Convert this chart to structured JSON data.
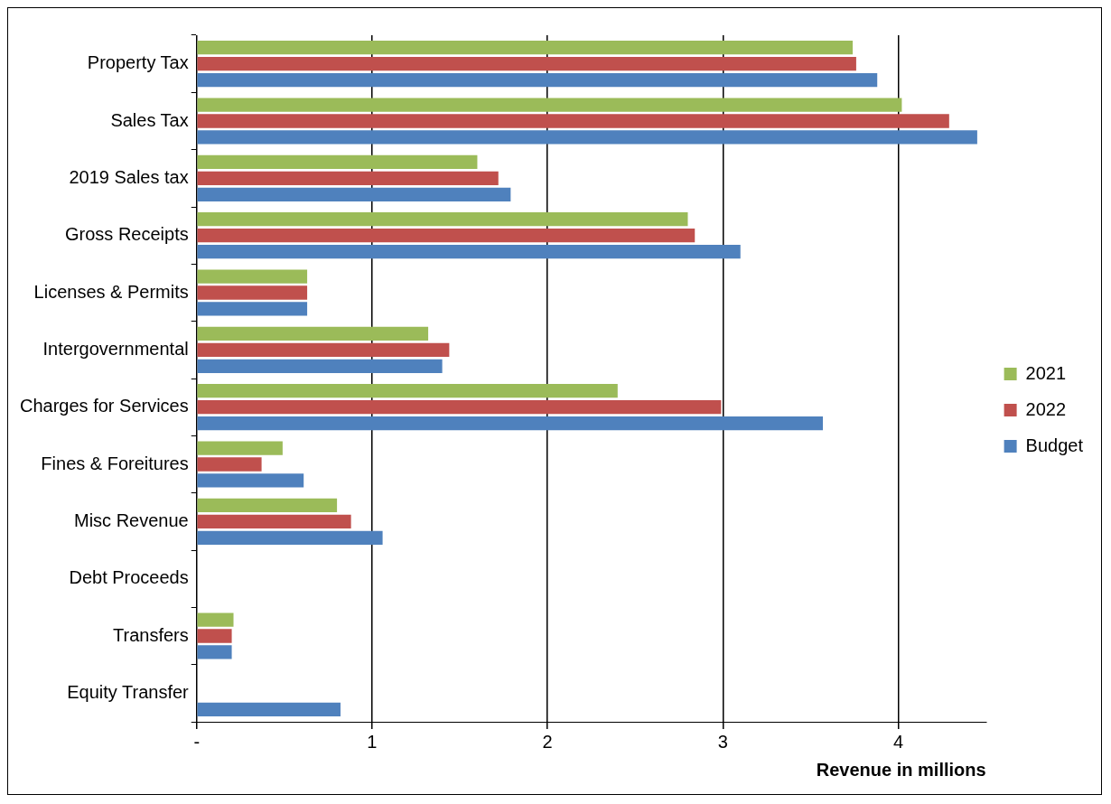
{
  "chart_data": {
    "type": "bar",
    "orientation": "horizontal",
    "xlabel": "Revenue in millions",
    "categories": [
      "Property Tax",
      "Sales Tax",
      "2019 Sales tax",
      "Gross Receipts",
      "Licenses & Permits",
      "Intergovernmental",
      "Charges for Services",
      "Fines & Foreitures",
      "Misc Revenue",
      "Debt Proceeds",
      "Transfers",
      "Equity Transfer"
    ],
    "series": [
      {
        "name": "2021",
        "color": "#9bbb59",
        "values": [
          3.74,
          4.02,
          1.6,
          2.8,
          0.63,
          1.32,
          2.4,
          0.49,
          0.8,
          0,
          0.21,
          0
        ]
      },
      {
        "name": "2022",
        "color": "#c0504d",
        "values": [
          3.76,
          4.29,
          1.72,
          2.84,
          0.63,
          1.44,
          2.99,
          0.37,
          0.88,
          0,
          0.2,
          0
        ]
      },
      {
        "name": "Budget",
        "color": "#4f81bd",
        "values": [
          3.88,
          4.45,
          1.79,
          3.1,
          0.63,
          1.4,
          3.57,
          0.61,
          1.06,
          0,
          0.2,
          0.82
        ]
      }
    ],
    "xlim": [
      0,
      4.5
    ],
    "xticks": [
      {
        "value": 0,
        "label": "-"
      },
      1,
      2,
      3,
      4
    ],
    "grid": "x",
    "legend": "right"
  }
}
